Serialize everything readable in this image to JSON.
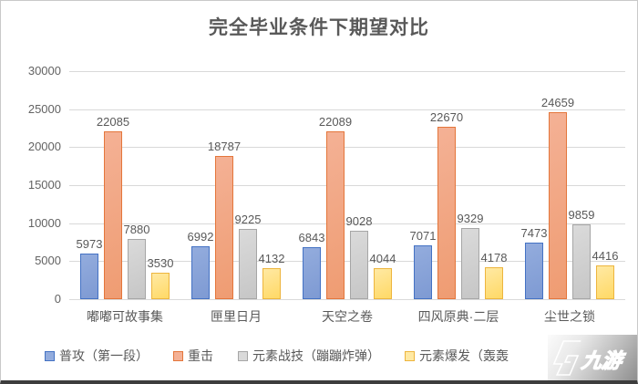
{
  "chart_data": {
    "type": "bar",
    "title": "完全毕业条件下期望对比",
    "xlabel": "",
    "ylabel": "",
    "ylim": [
      0,
      30000
    ],
    "yticks": [
      0,
      5000,
      10000,
      15000,
      20000,
      25000,
      30000
    ],
    "grid": true,
    "legend_position": "bottom",
    "categories": [
      "嘟嘟可故事集",
      "匣里日月",
      "天空之卷",
      "四风原典·二层",
      "尘世之锁"
    ],
    "series": [
      {
        "name": "普攻（第一段）",
        "values": [
          5973,
          6992,
          6843,
          7071,
          7473
        ],
        "border_color": "#4472C4",
        "fill_color": "#93ACDD",
        "fill_color2": "#7E9AD3"
      },
      {
        "name": "重击",
        "values": [
          22085,
          18787,
          22089,
          22670,
          24659
        ],
        "border_color": "#E4763B",
        "fill_color": "#F4B withstand",
        "fill_color2": "#EF9C72"
      },
      {
        "name": "元素战技（蹦蹦炸弹）",
        "values": [
          7880,
          9225,
          9028,
          9329,
          9859
        ],
        "border_color": "#A6A6A6",
        "fill_color": "#DADADA",
        "fill_color2": "#C6C6C6"
      },
      {
        "name": "元素爆发（轰轰",
        "values": [
          3530,
          4132,
          4044,
          4178,
          4416
        ],
        "border_color": "#EDB53E",
        "fill_color": "#FFE9A3",
        "fill_color2": "#FFD966"
      }
    ],
    "colors": {
      "gridline": "#D9D9D9",
      "axis_text": "#636363",
      "label_text": "#595959",
      "title_text": "#595959"
    }
  },
  "watermark": {
    "text": "九游",
    "icon": "nine-game-logo"
  }
}
